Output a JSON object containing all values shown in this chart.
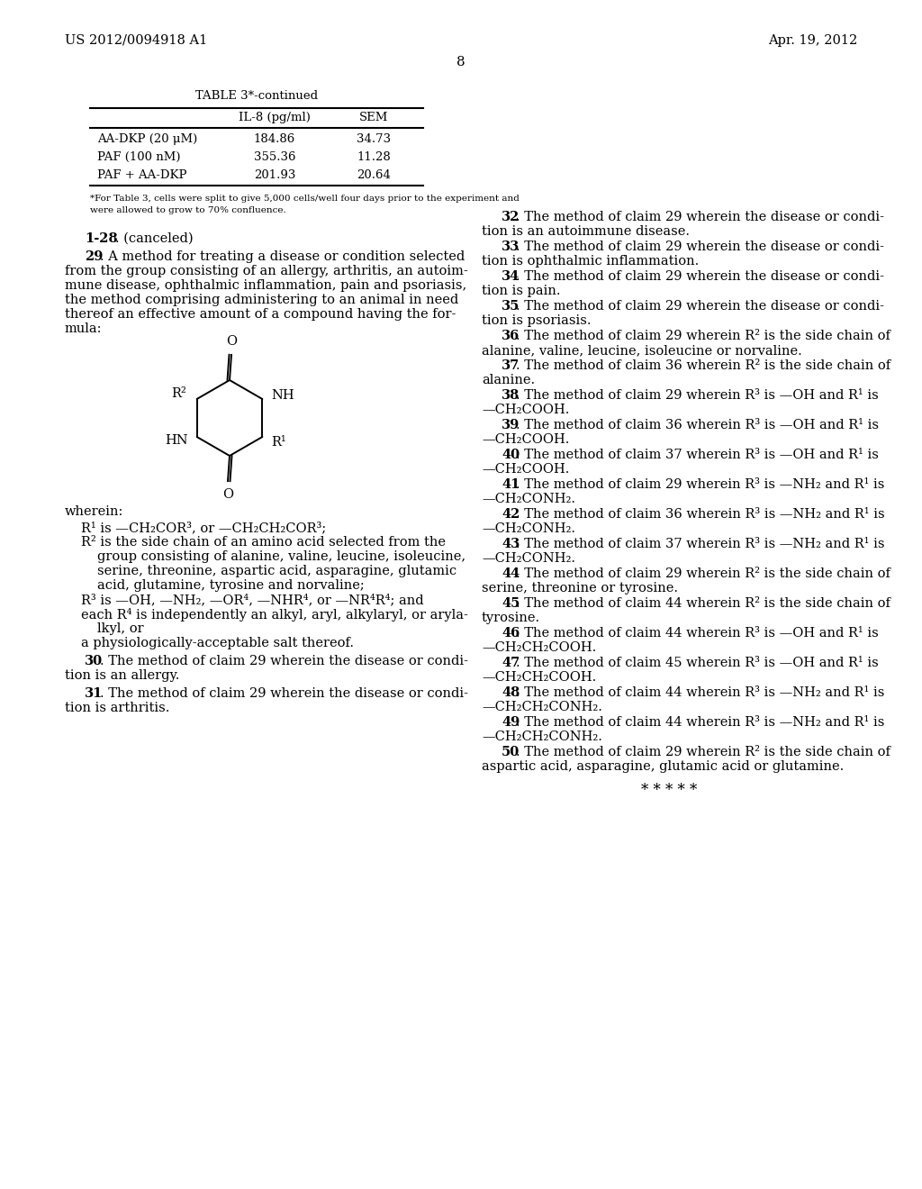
{
  "header_left": "US 2012/0094918 A1",
  "header_right": "Apr. 19, 2012",
  "page_number": "8",
  "background_color": "#ffffff",
  "text_color": "#000000",
  "table_title": "TABLE 3*-continued",
  "table_col2_header": "IL-8 (pg/ml)",
  "table_col3_header": "SEM",
  "table_rows": [
    [
      "AA-DKP (20 μM)",
      "184.86",
      "34.73"
    ],
    [
      "PAF (100 nM)",
      "355.36",
      "11.28"
    ],
    [
      "PAF + AA-DKP",
      "201.93",
      "20.64"
    ]
  ],
  "table_footnote_line1": "*For Table 3, cells were split to give 5,000 cells/well four days prior to the experiment and",
  "table_footnote_line2": "were allowed to grow to 70% confluence.",
  "stars": "* * * * *"
}
